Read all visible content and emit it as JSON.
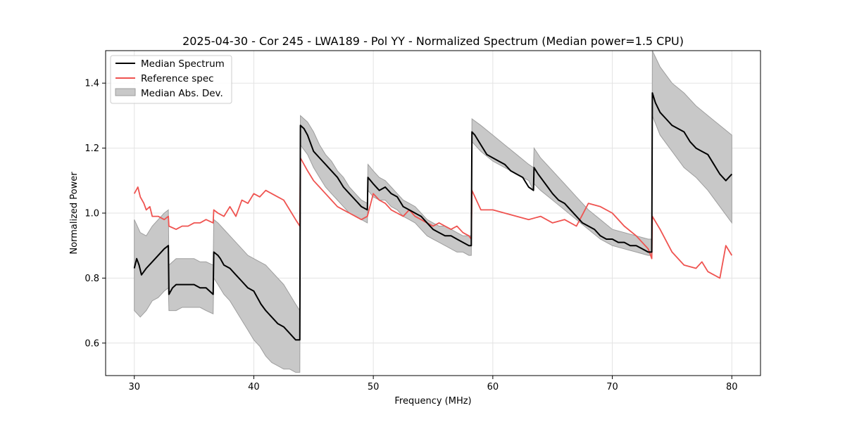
{
  "chart_data": {
    "type": "line",
    "title": "2025-04-30 - Cor 245 - LWA189 - Pol YY - Normalized Spectrum (Median power=1.5 CPU)",
    "xlabel": "Frequency (MHz)",
    "ylabel": "Normalized Power",
    "xlim": [
      27.6,
      82.4
    ],
    "ylim": [
      0.5,
      1.5
    ],
    "xticks": [
      30,
      40,
      50,
      60,
      70,
      80
    ],
    "yticks": [
      0.6,
      0.8,
      1.0,
      1.2,
      1.4
    ],
    "grid": true,
    "legend": {
      "position": "top-left",
      "entries": [
        {
          "label": "Median Spectrum",
          "kind": "line",
          "color": "#000000"
        },
        {
          "label": "Reference spec",
          "kind": "line",
          "color": "#ef5350"
        },
        {
          "label": "Median Abs. Dev.",
          "kind": "patch",
          "color": "#c8c8c8"
        }
      ]
    },
    "series": [
      {
        "name": "Median Spectrum",
        "color": "#000000",
        "x": [
          30.0,
          30.2,
          30.4,
          30.6,
          30.8,
          31.0,
          31.5,
          32.0,
          32.5,
          32.85,
          32.9,
          33.2,
          33.5,
          34.0,
          34.5,
          35.0,
          35.5,
          36.0,
          36.6,
          36.65,
          37.0,
          37.2,
          37.5,
          38.0,
          38.5,
          39.0,
          39.5,
          40.0,
          40.3,
          40.6,
          41.0,
          41.5,
          42.0,
          42.5,
          43.0,
          43.5,
          43.85,
          43.9,
          44.2,
          44.5,
          44.8,
          45.0,
          45.5,
          46.0,
          46.5,
          47.0,
          47.5,
          48.0,
          48.5,
          49.0,
          49.5,
          49.55,
          50.0,
          50.5,
          51.0,
          51.5,
          52.0,
          52.5,
          53.0,
          53.5,
          54.0,
          54.5,
          55.0,
          55.5,
          56.0,
          56.5,
          57.0,
          57.5,
          58.0,
          58.2,
          58.25,
          58.5,
          59.0,
          59.5,
          60.0,
          60.5,
          61.0,
          61.5,
          62.0,
          62.5,
          63.0,
          63.4,
          63.45,
          63.8,
          64.2,
          64.6,
          65.0,
          65.5,
          66.0,
          66.5,
          67.0,
          67.5,
          68.0,
          68.5,
          69.0,
          69.5,
          70.0,
          70.5,
          71.0,
          71.5,
          72.0,
          72.5,
          73.0,
          73.3,
          73.35,
          73.6,
          74.0,
          74.5,
          75.0,
          75.5,
          76.0,
          76.5,
          77.0,
          77.5,
          78.0,
          78.5,
          79.0,
          79.5,
          80.0
        ],
        "values": [
          0.83,
          0.86,
          0.84,
          0.81,
          0.82,
          0.83,
          0.85,
          0.87,
          0.89,
          0.9,
          0.75,
          0.77,
          0.78,
          0.78,
          0.78,
          0.78,
          0.77,
          0.77,
          0.75,
          0.88,
          0.87,
          0.86,
          0.84,
          0.83,
          0.81,
          0.79,
          0.77,
          0.76,
          0.74,
          0.72,
          0.7,
          0.68,
          0.66,
          0.65,
          0.63,
          0.61,
          0.61,
          1.27,
          1.26,
          1.24,
          1.21,
          1.19,
          1.17,
          1.15,
          1.13,
          1.11,
          1.08,
          1.06,
          1.04,
          1.02,
          1.01,
          1.11,
          1.09,
          1.07,
          1.08,
          1.06,
          1.05,
          1.02,
          1.01,
          1.0,
          0.99,
          0.97,
          0.95,
          0.94,
          0.93,
          0.93,
          0.92,
          0.91,
          0.9,
          0.9,
          1.25,
          1.24,
          1.21,
          1.18,
          1.17,
          1.16,
          1.15,
          1.13,
          1.12,
          1.11,
          1.08,
          1.07,
          1.14,
          1.12,
          1.1,
          1.08,
          1.06,
          1.04,
          1.03,
          1.01,
          0.99,
          0.97,
          0.96,
          0.95,
          0.93,
          0.92,
          0.92,
          0.91,
          0.91,
          0.9,
          0.9,
          0.89,
          0.88,
          0.88,
          1.37,
          1.34,
          1.31,
          1.29,
          1.27,
          1.26,
          1.25,
          1.22,
          1.2,
          1.19,
          1.18,
          1.15,
          1.12,
          1.1,
          1.12
        ]
      },
      {
        "name": "Reference spec",
        "color": "#ef5350",
        "x": [
          30.0,
          30.3,
          30.5,
          30.8,
          31.0,
          31.3,
          31.5,
          32.0,
          32.5,
          32.85,
          32.9,
          33.5,
          34.0,
          34.5,
          35.0,
          35.5,
          36.0,
          36.6,
          36.65,
          37.0,
          37.5,
          38.0,
          38.5,
          39.0,
          39.5,
          40.0,
          40.5,
          41.0,
          41.5,
          42.0,
          42.5,
          43.0,
          43.5,
          43.85,
          43.9,
          44.5,
          45.0,
          45.5,
          46.0,
          46.5,
          47.0,
          47.5,
          48.0,
          48.5,
          49.0,
          49.5,
          50.0,
          50.5,
          51.0,
          51.5,
          52.0,
          52.5,
          53.0,
          53.5,
          54.0,
          54.5,
          55.0,
          55.5,
          56.0,
          56.5,
          57.0,
          57.5,
          58.0,
          58.2,
          58.25,
          59.0,
          60.0,
          61.0,
          62.0,
          63.0,
          64.0,
          65.0,
          66.0,
          67.0,
          68.0,
          69.0,
          70.0,
          71.0,
          72.0,
          73.0,
          73.3,
          73.35,
          74.0,
          75.0,
          76.0,
          77.0,
          77.5,
          78.0,
          78.5,
          79.0,
          79.5,
          80.0
        ],
        "values": [
          1.06,
          1.08,
          1.05,
          1.03,
          1.01,
          1.02,
          0.99,
          0.99,
          0.98,
          0.99,
          0.96,
          0.95,
          0.96,
          0.96,
          0.97,
          0.97,
          0.98,
          0.97,
          1.01,
          1.0,
          0.99,
          1.02,
          0.99,
          1.04,
          1.03,
          1.06,
          1.05,
          1.07,
          1.06,
          1.05,
          1.04,
          1.01,
          0.98,
          0.96,
          1.17,
          1.13,
          1.1,
          1.08,
          1.06,
          1.04,
          1.02,
          1.01,
          1.0,
          0.99,
          0.98,
          0.99,
          1.06,
          1.04,
          1.03,
          1.01,
          1.0,
          0.99,
          1.01,
          0.99,
          0.98,
          0.97,
          0.96,
          0.97,
          0.96,
          0.95,
          0.96,
          0.94,
          0.93,
          0.92,
          1.07,
          1.01,
          1.01,
          1.0,
          0.99,
          0.98,
          0.99,
          0.97,
          0.98,
          0.96,
          1.03,
          1.02,
          1.0,
          0.96,
          0.93,
          0.89,
          0.86,
          0.99,
          0.95,
          0.88,
          0.84,
          0.83,
          0.85,
          0.82,
          0.81,
          0.8,
          0.9,
          0.87
        ]
      }
    ],
    "band": {
      "name": "Median Abs. Dev.",
      "color": "#c8c8c8",
      "edge": "#9e9e9e",
      "x": [
        30.0,
        30.5,
        31.0,
        31.5,
        32.0,
        32.5,
        32.85,
        32.9,
        33.5,
        34.0,
        34.5,
        35.0,
        35.5,
        36.0,
        36.6,
        36.65,
        37.0,
        37.5,
        38.0,
        38.5,
        39.0,
        39.5,
        40.0,
        40.5,
        41.0,
        41.5,
        42.0,
        42.5,
        43.0,
        43.5,
        43.85,
        43.9,
        44.5,
        45.0,
        45.5,
        46.0,
        46.5,
        47.0,
        47.5,
        48.0,
        48.5,
        49.0,
        49.5,
        49.55,
        50.0,
        50.5,
        51.0,
        51.5,
        52.0,
        52.5,
        53.0,
        53.5,
        54.0,
        54.5,
        55.0,
        55.5,
        56.0,
        56.5,
        57.0,
        57.5,
        58.0,
        58.2,
        58.25,
        59.0,
        60.0,
        61.0,
        62.0,
        63.0,
        63.4,
        63.45,
        64.0,
        65.0,
        66.0,
        67.0,
        68.0,
        69.0,
        70.0,
        71.0,
        72.0,
        73.0,
        73.3,
        73.35,
        74.0,
        75.0,
        76.0,
        77.0,
        78.0,
        79.0,
        80.0
      ],
      "lower": [
        0.7,
        0.68,
        0.7,
        0.73,
        0.74,
        0.76,
        0.77,
        0.7,
        0.7,
        0.71,
        0.71,
        0.71,
        0.71,
        0.7,
        0.69,
        0.8,
        0.78,
        0.75,
        0.73,
        0.7,
        0.67,
        0.64,
        0.61,
        0.59,
        0.56,
        0.54,
        0.53,
        0.52,
        0.52,
        0.51,
        0.51,
        1.21,
        1.18,
        1.14,
        1.11,
        1.08,
        1.06,
        1.04,
        1.02,
        1.0,
        0.99,
        0.98,
        0.97,
        1.07,
        1.05,
        1.04,
        1.04,
        1.02,
        1.01,
        0.99,
        0.98,
        0.97,
        0.95,
        0.93,
        0.92,
        0.91,
        0.9,
        0.89,
        0.88,
        0.88,
        0.87,
        0.87,
        1.22,
        1.19,
        1.16,
        1.14,
        1.12,
        1.1,
        1.07,
        1.09,
        1.07,
        1.04,
        1.01,
        0.98,
        0.95,
        0.92,
        0.9,
        0.89,
        0.88,
        0.87,
        0.87,
        1.3,
        1.24,
        1.19,
        1.14,
        1.11,
        1.07,
        1.02,
        0.97
      ],
      "upper": [
        0.98,
        0.94,
        0.93,
        0.96,
        0.98,
        1.0,
        1.01,
        0.84,
        0.86,
        0.86,
        0.86,
        0.86,
        0.85,
        0.85,
        0.84,
        0.98,
        0.97,
        0.95,
        0.93,
        0.91,
        0.89,
        0.87,
        0.86,
        0.85,
        0.84,
        0.82,
        0.8,
        0.78,
        0.75,
        0.72,
        0.7,
        1.3,
        1.28,
        1.25,
        1.21,
        1.18,
        1.16,
        1.13,
        1.11,
        1.08,
        1.06,
        1.04,
        1.03,
        1.15,
        1.13,
        1.11,
        1.1,
        1.08,
        1.06,
        1.04,
        1.03,
        1.02,
        1.0,
        0.98,
        0.97,
        0.96,
        0.96,
        0.95,
        0.94,
        0.93,
        0.93,
        0.93,
        1.29,
        1.27,
        1.24,
        1.21,
        1.18,
        1.15,
        1.14,
        1.2,
        1.17,
        1.13,
        1.09,
        1.05,
        1.01,
        0.98,
        0.95,
        0.94,
        0.93,
        0.92,
        0.92,
        1.5,
        1.45,
        1.4,
        1.37,
        1.33,
        1.3,
        1.27,
        1.24
      ]
    }
  }
}
